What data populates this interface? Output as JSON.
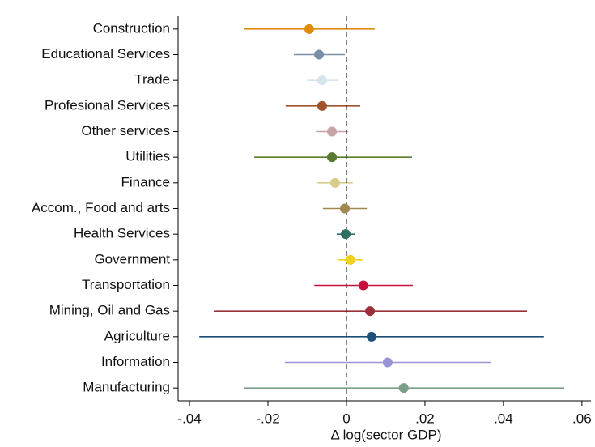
{
  "chart_data": {
    "type": "coefplot",
    "x_label": "Δ log(sector GDP)",
    "categories": [
      "Construction",
      "Educational Services",
      "Trade",
      "Profesional Services",
      "Other services",
      "Utilities",
      "Finance",
      "Accom., Food and arts",
      "Health Services",
      "Government",
      "Transportation",
      "Mining, Oil and Gas",
      "Agriculture",
      "Information",
      "Manufacturing"
    ],
    "values": [
      -0.0095,
      -0.007,
      -0.0062,
      -0.0062,
      -0.0037,
      -0.0037,
      -0.0029,
      -0.0004,
      -0.0002,
      0.001,
      0.0043,
      0.006,
      0.0064,
      0.0105,
      0.0146
    ],
    "lower": [
      -0.026,
      -0.0134,
      -0.0101,
      -0.0155,
      -0.0078,
      -0.0235,
      -0.0074,
      -0.006,
      -0.0025,
      -0.0023,
      -0.0082,
      -0.0338,
      -0.0375,
      -0.0157,
      -0.0262
    ],
    "upper": [
      0.0072,
      -0.0004,
      -0.0023,
      0.0035,
      0.0004,
      0.0167,
      0.0016,
      0.0052,
      0.0021,
      0.0041,
      0.0169,
      0.046,
      0.0503,
      0.0367,
      0.0555
    ],
    "colors": [
      "#e08a0b",
      "#7a8fa6",
      "#d6e4ee",
      "#a0522d",
      "#c4a4a4",
      "#5a7a30",
      "#d8cc8c",
      "#a08850",
      "#2f6f63",
      "#f2d21b",
      "#c8103e",
      "#9b2f3a",
      "#1f4e79",
      "#9a93d6",
      "#7a9e8a"
    ],
    "reference_line": 0,
    "xlim": [
      -0.0429,
      0.0623
    ],
    "xticks": [
      {
        "value": -0.04,
        "label": "-.04"
      },
      {
        "value": -0.02,
        "label": "-.02"
      },
      0,
      {
        "value": 0.02,
        "label": ".02"
      },
      {
        "value": 0.04,
        "label": ".04"
      },
      {
        "value": 0.06,
        "label": ".06"
      }
    ]
  }
}
